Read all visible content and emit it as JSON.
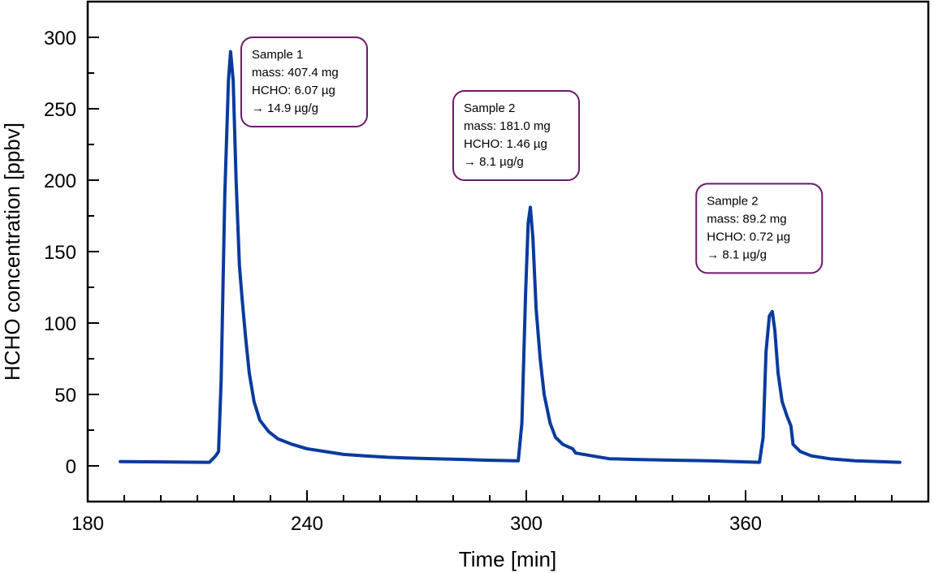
{
  "chart_data": {
    "type": "line",
    "title": "",
    "xlabel": "Time [min]",
    "ylabel": "HCHO concentration [ppbv]",
    "xlim": [
      180,
      410
    ],
    "ylim": [
      -25,
      325
    ],
    "x_ticks": [
      180,
      240,
      300,
      360
    ],
    "x_minor_step": 10,
    "y_ticks": [
      0,
      50,
      100,
      150,
      200,
      250,
      300
    ],
    "y_minor_step": 25,
    "grid": false,
    "line_color": "#0a3a9e",
    "annotation_color": "#6b1a6b",
    "series": [
      {
        "name": "HCHO",
        "x": [
          188.9,
          200,
          213.3,
          215.0,
          215.8,
          216.5,
          217.5,
          218.5,
          219.1,
          219.8,
          220.6,
          221.5,
          222.3,
          223.2,
          224.2,
          225.5,
          227.1,
          229.5,
          232,
          236,
          240,
          245,
          250,
          256,
          262,
          267,
          275,
          283,
          289,
          297.8,
          298.8,
          299.8,
          300.5,
          301.1,
          301.8,
          302.7,
          303.8,
          304.9,
          306.5,
          308,
          310,
          312.7,
          313.5,
          318,
          322.7,
          330,
          340,
          350,
          363.8,
          364.8,
          365.6,
          366.5,
          367.3,
          368.0,
          368.9,
          370,
          371.3,
          372.4,
          373.0,
          375,
          378,
          383,
          390,
          402.2
        ],
        "y": [
          3,
          2.8,
          2.5,
          7,
          10,
          60,
          190,
          270,
          290,
          270,
          200,
          140,
          115,
          90,
          65,
          45,
          32,
          24,
          19,
          15,
          12,
          10,
          8,
          7,
          6,
          5.5,
          5,
          4.5,
          4,
          3.5,
          30,
          120,
          170,
          181,
          160,
          110,
          75,
          50,
          30,
          20,
          15,
          12,
          9,
          7,
          5,
          4.5,
          4,
          3.5,
          2.5,
          20,
          80,
          105,
          108,
          95,
          65,
          45,
          35,
          28,
          15,
          10,
          7,
          5,
          3.5,
          2.5
        ]
      }
    ],
    "annotations": [
      {
        "x": 222,
        "y": 300,
        "lines": [
          "Sample 1",
          "mass: 407.4 mg",
          "HCHO: 6.07 µg",
          "→ 14.9 µg/g"
        ]
      },
      {
        "x": 280,
        "y": 262.5,
        "lines": [
          "Sample 2",
          "mass: 181.0 mg",
          "HCHO: 1.46 µg",
          "→ 8.1 µg/g"
        ]
      },
      {
        "x": 346.5,
        "y": 197.5,
        "lines": [
          "Sample 2",
          "mass: 89.2 mg",
          "HCHO: 0.72 µg",
          "→ 8.1 µg/g"
        ]
      }
    ]
  }
}
